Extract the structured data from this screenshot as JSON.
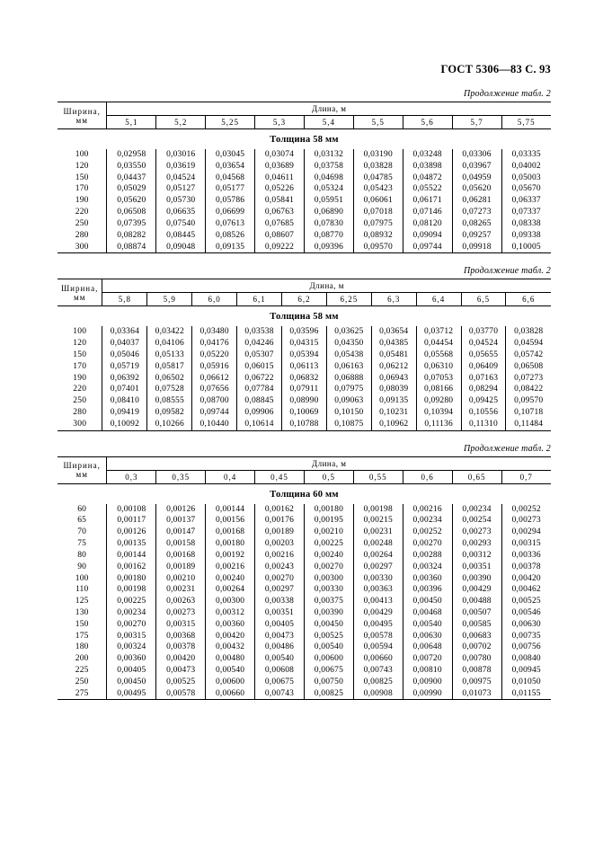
{
  "header": "ГОСТ 5306—83 С. 93",
  "cont_label": "Продолжение табл. 2",
  "col_header_width": "Ширина, мм",
  "col_header_length": "Длина, м",
  "tables": [
    {
      "length_headers": [
        "5,1",
        "5,2",
        "5,25",
        "5,3",
        "5,4",
        "5,5",
        "5,6",
        "5,7",
        "5,75"
      ],
      "thickness_title": "Толщина 58 мм",
      "rows": [
        {
          "w": "100",
          "v": [
            "0,02958",
            "0,03016",
            "0,03045",
            "0,03074",
            "0,03132",
            "0,03190",
            "0,03248",
            "0,03306",
            "0,03335"
          ]
        },
        {
          "w": "120",
          "v": [
            "0,03550",
            "0,03619",
            "0,03654",
            "0,03689",
            "0,03758",
            "0,03828",
            "0,03898",
            "0,03967",
            "0,04002"
          ]
        },
        {
          "w": "150",
          "v": [
            "0,04437",
            "0,04524",
            "0,04568",
            "0,04611",
            "0,04698",
            "0,04785",
            "0,04872",
            "0,04959",
            "0,05003"
          ]
        },
        {
          "w": "170",
          "v": [
            "0,05029",
            "0,05127",
            "0,05177",
            "0,05226",
            "0,05324",
            "0,05423",
            "0,05522",
            "0,05620",
            "0,05670"
          ]
        },
        {
          "w": "190",
          "v": [
            "0,05620",
            "0,05730",
            "0,05786",
            "0,05841",
            "0,05951",
            "0,06061",
            "0,06171",
            "0,06281",
            "0,06337"
          ]
        },
        {
          "w": "220",
          "v": [
            "0,06508",
            "0,06635",
            "0,06699",
            "0,06763",
            "0,06890",
            "0,07018",
            "0,07146",
            "0,07273",
            "0,07337"
          ]
        },
        {
          "w": "250",
          "v": [
            "0,07395",
            "0,07540",
            "0,07613",
            "0,07685",
            "0,07830",
            "0,07975",
            "0,08120",
            "0,08265",
            "0,08338"
          ]
        },
        {
          "w": "280",
          "v": [
            "0,08282",
            "0,08445",
            "0,08526",
            "0,08607",
            "0,08770",
            "0,08932",
            "0,09094",
            "0,09257",
            "0,09338"
          ]
        },
        {
          "w": "300",
          "v": [
            "0,08874",
            "0,09048",
            "0,09135",
            "0,09222",
            "0,09396",
            "0,09570",
            "0,09744",
            "0,09918",
            "0,10005"
          ]
        }
      ]
    },
    {
      "length_headers": [
        "5,8",
        "5,9",
        "6,0",
        "6,1",
        "6,2",
        "6,25",
        "6,3",
        "6,4",
        "6,5",
        "6,6"
      ],
      "thickness_title": "Толщина 58 мм",
      "rows": [
        {
          "w": "100",
          "v": [
            "0,03364",
            "0,03422",
            "0,03480",
            "0,03538",
            "0,03596",
            "0,03625",
            "0,03654",
            "0,03712",
            "0,03770",
            "0,03828"
          ]
        },
        {
          "w": "120",
          "v": [
            "0,04037",
            "0,04106",
            "0,04176",
            "0,04246",
            "0,04315",
            "0,04350",
            "0,04385",
            "0,04454",
            "0,04524",
            "0,04594"
          ]
        },
        {
          "w": "150",
          "v": [
            "0,05046",
            "0,05133",
            "0,05220",
            "0,05307",
            "0,05394",
            "0,05438",
            "0,05481",
            "0,05568",
            "0,05655",
            "0,05742"
          ]
        },
        {
          "w": "170",
          "v": [
            "0,05719",
            "0,05817",
            "0,05916",
            "0,06015",
            "0,06113",
            "0,06163",
            "0,06212",
            "0,06310",
            "0,06409",
            "0,06508"
          ]
        },
        {
          "w": "190",
          "v": [
            "0,06392",
            "0,06502",
            "0,06612",
            "0,06722",
            "0,06832",
            "0,06888",
            "0,06943",
            "0,07053",
            "0,07163",
            "0,07273"
          ]
        },
        {
          "w": "220",
          "v": [
            "0,07401",
            "0,07528",
            "0,07656",
            "0,07784",
            "0,07911",
            "0,07975",
            "0,08039",
            "0,08166",
            "0,08294",
            "0,08422"
          ]
        },
        {
          "w": "250",
          "v": [
            "0,08410",
            "0,08555",
            "0,08700",
            "0,08845",
            "0,08990",
            "0,09063",
            "0,09135",
            "0,09280",
            "0,09425",
            "0,09570"
          ]
        },
        {
          "w": "280",
          "v": [
            "0,09419",
            "0,09582",
            "0,09744",
            "0,09906",
            "0,10069",
            "0,10150",
            "0,10231",
            "0,10394",
            "0,10556",
            "0,10718"
          ]
        },
        {
          "w": "300",
          "v": [
            "0,10092",
            "0,10266",
            "0,10440",
            "0,10614",
            "0,10788",
            "0,10875",
            "0,10962",
            "0,11136",
            "0,11310",
            "0,11484"
          ]
        }
      ]
    },
    {
      "length_headers": [
        "0,3",
        "0,35",
        "0,4",
        "0,45",
        "0,5",
        "0,55",
        "0,6",
        "0,65",
        "0,7"
      ],
      "thickness_title": "Толщина 60 мм",
      "rows": [
        {
          "w": "60",
          "v": [
            "0,00108",
            "0,00126",
            "0,00144",
            "0,00162",
            "0,00180",
            "0,00198",
            "0,00216",
            "0,00234",
            "0,00252"
          ]
        },
        {
          "w": "65",
          "v": [
            "0,00117",
            "0,00137",
            "0,00156",
            "0,00176",
            "0,00195",
            "0,00215",
            "0,00234",
            "0,00254",
            "0,00273"
          ]
        },
        {
          "w": "70",
          "v": [
            "0,00126",
            "0,00147",
            "0,00168",
            "0,00189",
            "0,00210",
            "0,00231",
            "0,00252",
            "0,00273",
            "0,00294"
          ]
        },
        {
          "w": "75",
          "v": [
            "0,00135",
            "0,00158",
            "0,00180",
            "0,00203",
            "0,00225",
            "0,00248",
            "0,00270",
            "0,00293",
            "0,00315"
          ]
        },
        {
          "w": "80",
          "v": [
            "0,00144",
            "0,00168",
            "0,00192",
            "0,00216",
            "0,00240",
            "0,00264",
            "0,00288",
            "0,00312",
            "0,00336"
          ]
        },
        {
          "w": "90",
          "v": [
            "0,00162",
            "0,00189",
            "0,00216",
            "0,00243",
            "0,00270",
            "0,00297",
            "0,00324",
            "0,00351",
            "0,00378"
          ]
        },
        {
          "w": "100",
          "v": [
            "0,00180",
            "0,00210",
            "0,00240",
            "0,00270",
            "0,00300",
            "0,00330",
            "0,00360",
            "0,00390",
            "0,00420"
          ]
        },
        {
          "w": "110",
          "v": [
            "0,00198",
            "0,00231",
            "0,00264",
            "0,00297",
            "0,00330",
            "0,00363",
            "0,00396",
            "0,00429",
            "0,00462"
          ]
        },
        {
          "w": "125",
          "v": [
            "0,00225",
            "0,00263",
            "0,00300",
            "0,00338",
            "0,00375",
            "0,00413",
            "0,00450",
            "0,00488",
            "0,00525"
          ]
        },
        {
          "w": "130",
          "v": [
            "0,00234",
            "0,00273",
            "0,00312",
            "0,00351",
            "0,00390",
            "0,00429",
            "0,00468",
            "0,00507",
            "0,00546"
          ]
        },
        {
          "w": "150",
          "v": [
            "0,00270",
            "0,00315",
            "0,00360",
            "0,00405",
            "0,00450",
            "0,00495",
            "0,00540",
            "0,00585",
            "0,00630"
          ]
        },
        {
          "w": "175",
          "v": [
            "0,00315",
            "0,00368",
            "0,00420",
            "0,00473",
            "0,00525",
            "0,00578",
            "0,00630",
            "0,00683",
            "0,00735"
          ]
        },
        {
          "w": "180",
          "v": [
            "0,00324",
            "0,00378",
            "0,00432",
            "0,00486",
            "0,00540",
            "0,00594",
            "0,00648",
            "0,00702",
            "0,00756"
          ]
        },
        {
          "w": "200",
          "v": [
            "0,00360",
            "0,00420",
            "0,00480",
            "0,00540",
            "0,00600",
            "0,00660",
            "0,00720",
            "0,00780",
            "0,00840"
          ]
        },
        {
          "w": "225",
          "v": [
            "0,00405",
            "0,00473",
            "0,00540",
            "0,00608",
            "0,00675",
            "0,00743",
            "0,00810",
            "0,00878",
            "0,00945"
          ]
        },
        {
          "w": "250",
          "v": [
            "0,00450",
            "0,00525",
            "0,00600",
            "0,00675",
            "0,00750",
            "0,00825",
            "0,00900",
            "0,00975",
            "0,01050"
          ]
        },
        {
          "w": "275",
          "v": [
            "0,00495",
            "0,00578",
            "0,00660",
            "0,00743",
            "0,00825",
            "0,00908",
            "0,00990",
            "0,01073",
            "0,01155"
          ]
        }
      ]
    }
  ]
}
